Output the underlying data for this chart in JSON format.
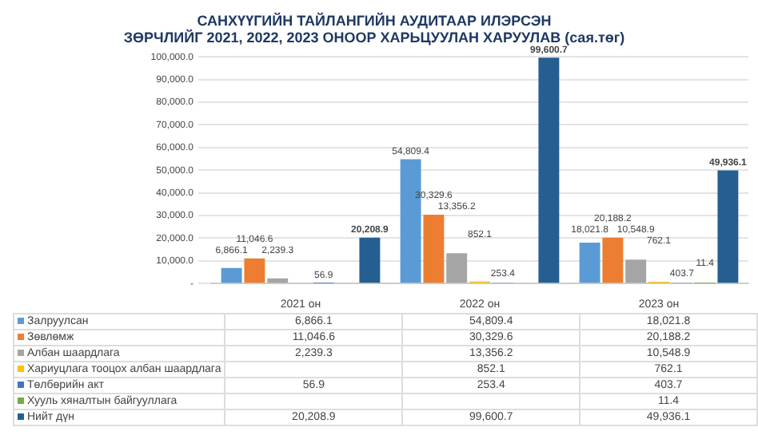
{
  "chart_data": {
    "type": "bar",
    "title": "САНХҮҮГИЙН ТАЙЛАНГИЙН АУДИТААР ИЛЭРСЭН\nЗӨРЧЛИЙГ 2021, 2022, 2023 ОНООР ХАРЬЦУУЛАН ХАРУУЛАВ (сая.төг)",
    "categories": [
      "2021 он",
      "2022 он",
      "2023 он"
    ],
    "series": [
      {
        "name": "Залруулсан",
        "color": "#5b9bd5",
        "values": [
          6866.1,
          54809.4,
          18021.8
        ],
        "value_labels": [
          "6,866.1",
          "54,809.4",
          "18,021.8"
        ]
      },
      {
        "name": "Зөвлөмж",
        "color": "#ed7d31",
        "values": [
          11046.6,
          30329.6,
          20188.2
        ],
        "value_labels": [
          "11,046.6",
          "30,329.6",
          "20,188.2"
        ]
      },
      {
        "name": "Албан шаардлага",
        "color": "#a5a5a5",
        "values": [
          2239.3,
          13356.2,
          10548.9
        ],
        "value_labels": [
          "2,239.3",
          "13,356.2",
          "10,548.9"
        ]
      },
      {
        "name": "Хариуцлага тооцох албан шаардлага",
        "color": "#ffc000",
        "values": [
          null,
          852.1,
          762.1
        ],
        "value_labels": [
          null,
          "852.1",
          "762.1"
        ]
      },
      {
        "name": "Төлбөрийн акт",
        "color": "#4472c4",
        "values": [
          56.9,
          253.4,
          403.7
        ],
        "value_labels": [
          "56.9",
          "253.4",
          "403.7"
        ]
      },
      {
        "name": "Хууль хяналтын байгууллага",
        "color": "#70ad47",
        "values": [
          null,
          null,
          11.4
        ],
        "value_labels": [
          null,
          null,
          "11.4"
        ]
      },
      {
        "name": "Нийт дүн",
        "color": "#255e91",
        "values": [
          20208.9,
          99600.7,
          49936.1
        ],
        "value_labels": [
          "20,208.9",
          "99,600.7",
          "49,936.1"
        ]
      }
    ],
    "ylim": [
      0,
      100000
    ],
    "yticks": [
      {
        "value": 0,
        "label": "-"
      },
      {
        "value": 10000,
        "label": "10,000.0"
      },
      {
        "value": 20000,
        "label": "20,000.0"
      },
      {
        "value": 30000,
        "label": "30,000.0"
      },
      {
        "value": 40000,
        "label": "40,000.0"
      },
      {
        "value": 50000,
        "label": "50,000.0"
      },
      {
        "value": 60000,
        "label": "60,000.0"
      },
      {
        "value": 70000,
        "label": "70,000.0"
      },
      {
        "value": 80000,
        "label": "80,000.0"
      },
      {
        "value": 90000,
        "label": "90,000.0"
      },
      {
        "value": 100000,
        "label": "100,000.0"
      }
    ],
    "grid": "y",
    "legend": "bottom left"
  }
}
